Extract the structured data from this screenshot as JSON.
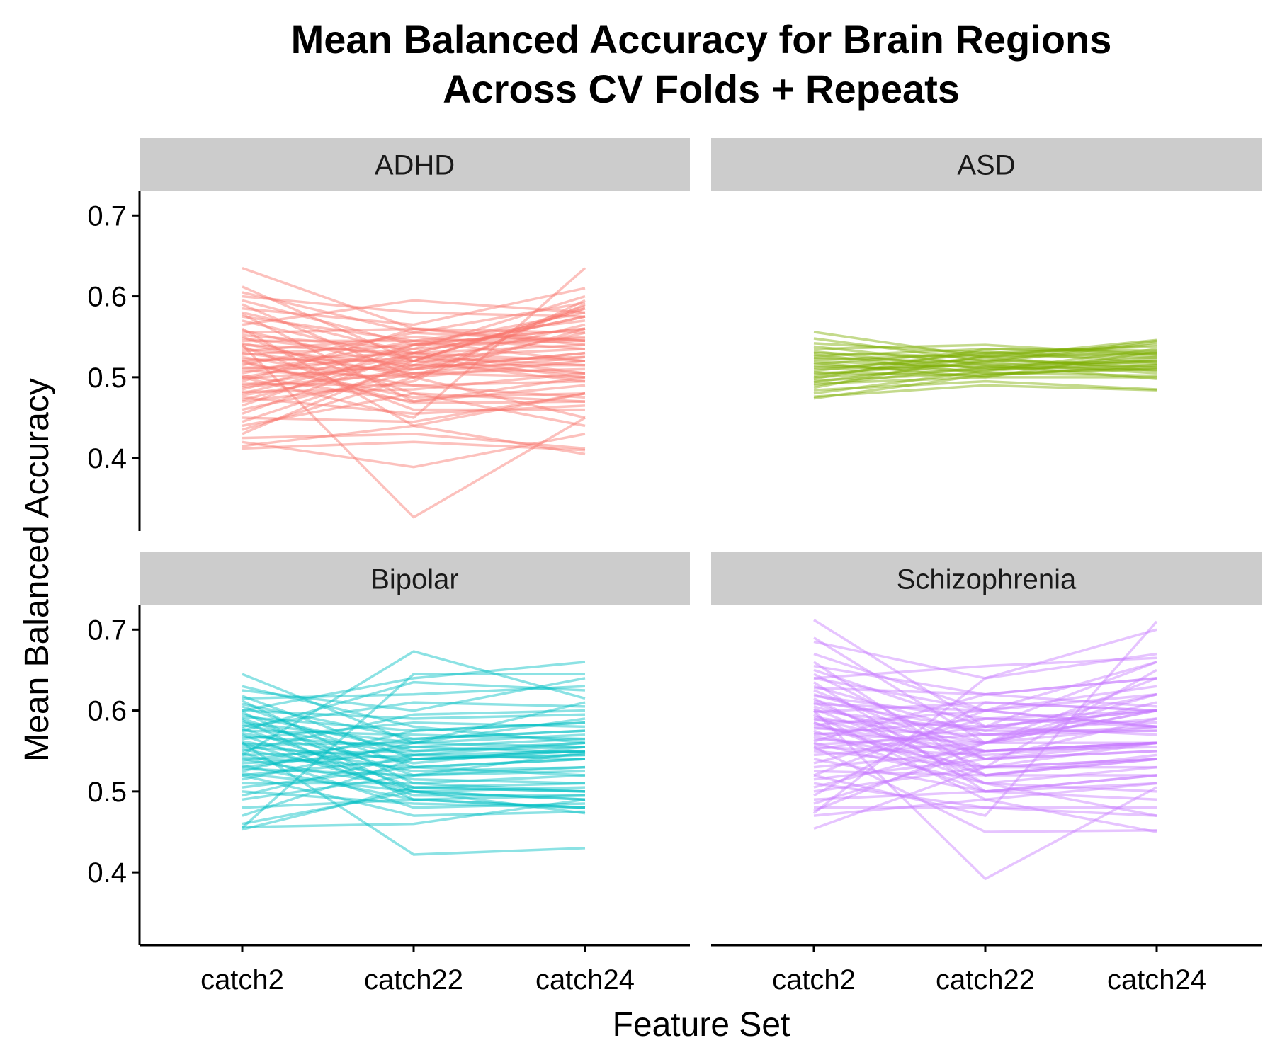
{
  "chart_data": {
    "type": "line",
    "title_lines": [
      "Mean Balanced Accuracy for Brain Regions",
      "Across CV Folds + Repeats"
    ],
    "xlabel": "Feature Set",
    "ylabel": "Mean Balanced Accuracy",
    "categories": [
      "catch2",
      "catch22",
      "catch24"
    ],
    "ylim": [
      0.31,
      0.73
    ],
    "yticks": [
      0.4,
      0.5,
      0.6,
      0.7
    ],
    "ytick_labels": [
      "0.4",
      "0.5",
      "0.6",
      "0.7"
    ],
    "grid": false,
    "legend": "none",
    "facets": [
      {
        "label": "ADHD",
        "color": "#F8766D",
        "lines": [
          [
            0.635,
            0.56,
            0.545
          ],
          [
            0.612,
            0.52,
            0.588
          ],
          [
            0.605,
            0.555,
            0.592
          ],
          [
            0.6,
            0.58,
            0.575
          ],
          [
            0.595,
            0.54,
            0.56
          ],
          [
            0.59,
            0.5,
            0.52
          ],
          [
            0.585,
            0.565,
            0.61
          ],
          [
            0.58,
            0.53,
            0.54
          ],
          [
            0.578,
            0.47,
            0.5
          ],
          [
            0.575,
            0.545,
            0.57
          ],
          [
            0.57,
            0.52,
            0.585
          ],
          [
            0.565,
            0.595,
            0.58
          ],
          [
            0.56,
            0.44,
            0.48
          ],
          [
            0.558,
            0.51,
            0.53
          ],
          [
            0.555,
            0.56,
            0.555
          ],
          [
            0.552,
            0.535,
            0.6
          ],
          [
            0.55,
            0.48,
            0.47
          ],
          [
            0.548,
            0.525,
            0.515
          ],
          [
            0.545,
            0.545,
            0.548
          ],
          [
            0.542,
            0.5,
            0.59
          ],
          [
            0.54,
            0.53,
            0.505
          ],
          [
            0.538,
            0.46,
            0.46
          ],
          [
            0.535,
            0.515,
            0.565
          ],
          [
            0.532,
            0.55,
            0.535
          ],
          [
            0.53,
            0.505,
            0.51
          ],
          [
            0.528,
            0.54,
            0.58
          ],
          [
            0.525,
            0.49,
            0.495
          ],
          [
            0.522,
            0.52,
            0.525
          ],
          [
            0.52,
            0.53,
            0.575
          ],
          [
            0.518,
            0.475,
            0.48
          ],
          [
            0.515,
            0.555,
            0.545
          ],
          [
            0.512,
            0.51,
            0.53
          ],
          [
            0.51,
            0.525,
            0.5
          ],
          [
            0.508,
            0.5,
            0.56
          ],
          [
            0.505,
            0.545,
            0.52
          ],
          [
            0.502,
            0.47,
            0.49
          ],
          [
            0.5,
            0.535,
            0.55
          ],
          [
            0.498,
            0.515,
            0.515
          ],
          [
            0.495,
            0.56,
            0.54
          ],
          [
            0.492,
            0.49,
            0.475
          ],
          [
            0.49,
            0.52,
            0.585
          ],
          [
            0.488,
            0.505,
            0.5
          ],
          [
            0.485,
            0.54,
            0.56
          ],
          [
            0.482,
            0.485,
            0.505
          ],
          [
            0.48,
            0.53,
            0.52
          ],
          [
            0.478,
            0.51,
            0.555
          ],
          [
            0.475,
            0.455,
            0.465
          ],
          [
            0.472,
            0.525,
            0.535
          ],
          [
            0.47,
            0.495,
            0.595
          ],
          [
            0.465,
            0.54,
            0.545
          ],
          [
            0.46,
            0.505,
            0.525
          ],
          [
            0.455,
            0.53,
            0.575
          ],
          [
            0.45,
            0.445,
            0.48
          ],
          [
            0.445,
            0.515,
            0.505
          ],
          [
            0.44,
            0.48,
            0.44
          ],
          [
            0.435,
            0.5,
            0.45
          ],
          [
            0.43,
            0.52,
            0.495
          ],
          [
            0.425,
            0.43,
            0.412
          ],
          [
            0.42,
            0.389,
            0.43
          ],
          [
            0.415,
            0.44,
            0.405
          ],
          [
            0.412,
            0.42,
            0.41
          ],
          [
            0.54,
            0.327,
            0.45
          ],
          [
            0.5,
            0.45,
            0.635
          ],
          [
            0.52,
            0.468,
            0.47
          ]
        ]
      },
      {
        "label": "ASD",
        "color": "#7CAE00",
        "lines": [
          [
            0.556,
            0.525,
            0.53
          ],
          [
            0.548,
            0.52,
            0.545
          ],
          [
            0.542,
            0.53,
            0.538
          ],
          [
            0.538,
            0.515,
            0.52
          ],
          [
            0.535,
            0.54,
            0.528
          ],
          [
            0.532,
            0.51,
            0.515
          ],
          [
            0.53,
            0.525,
            0.546
          ],
          [
            0.528,
            0.505,
            0.51
          ],
          [
            0.526,
            0.535,
            0.533
          ],
          [
            0.524,
            0.518,
            0.505
          ],
          [
            0.522,
            0.528,
            0.54
          ],
          [
            0.52,
            0.512,
            0.525
          ],
          [
            0.518,
            0.5,
            0.5
          ],
          [
            0.516,
            0.532,
            0.518
          ],
          [
            0.514,
            0.508,
            0.535
          ],
          [
            0.512,
            0.522,
            0.512
          ],
          [
            0.51,
            0.515,
            0.498
          ],
          [
            0.508,
            0.53,
            0.527
          ],
          [
            0.506,
            0.502,
            0.515
          ],
          [
            0.504,
            0.518,
            0.543
          ],
          [
            0.502,
            0.525,
            0.508
          ],
          [
            0.5,
            0.51,
            0.522
          ],
          [
            0.498,
            0.535,
            0.53
          ],
          [
            0.496,
            0.505,
            0.502
          ],
          [
            0.494,
            0.52,
            0.517
          ],
          [
            0.492,
            0.5,
            0.532
          ],
          [
            0.49,
            0.513,
            0.509
          ],
          [
            0.487,
            0.527,
            0.524
          ],
          [
            0.484,
            0.495,
            0.485
          ],
          [
            0.48,
            0.508,
            0.52
          ],
          [
            0.476,
            0.49,
            0.484
          ],
          [
            0.474,
            0.503,
            0.512
          ]
        ]
      },
      {
        "label": "Bipolar",
        "color": "#00BFC4",
        "lines": [
          [
            0.645,
            0.56,
            0.61
          ],
          [
            0.63,
            0.58,
            0.56
          ],
          [
            0.625,
            0.6,
            0.64
          ],
          [
            0.618,
            0.54,
            0.55
          ],
          [
            0.615,
            0.62,
            0.63
          ],
          [
            0.612,
            0.51,
            0.5
          ],
          [
            0.608,
            0.565,
            0.575
          ],
          [
            0.605,
            0.53,
            0.52
          ],
          [
            0.6,
            0.59,
            0.595
          ],
          [
            0.598,
            0.5,
            0.49
          ],
          [
            0.595,
            0.55,
            0.56
          ],
          [
            0.592,
            0.575,
            0.585
          ],
          [
            0.59,
            0.52,
            0.548
          ],
          [
            0.588,
            0.49,
            0.48
          ],
          [
            0.585,
            0.56,
            0.59
          ],
          [
            0.582,
            0.545,
            0.54
          ],
          [
            0.58,
            0.61,
            0.605
          ],
          [
            0.578,
            0.505,
            0.5
          ],
          [
            0.575,
            0.57,
            0.565
          ],
          [
            0.572,
            0.535,
            0.555
          ],
          [
            0.57,
            0.495,
            0.495
          ],
          [
            0.568,
            0.555,
            0.548
          ],
          [
            0.565,
            0.585,
            0.58
          ],
          [
            0.562,
            0.525,
            0.53
          ],
          [
            0.56,
            0.5,
            0.49
          ],
          [
            0.558,
            0.56,
            0.57
          ],
          [
            0.555,
            0.54,
            0.545
          ],
          [
            0.552,
            0.515,
            0.51
          ],
          [
            0.55,
            0.595,
            0.6
          ],
          [
            0.548,
            0.48,
            0.485
          ],
          [
            0.545,
            0.55,
            0.555
          ],
          [
            0.542,
            0.53,
            0.54
          ],
          [
            0.54,
            0.505,
            0.5
          ],
          [
            0.538,
            0.565,
            0.575
          ],
          [
            0.535,
            0.545,
            0.55
          ],
          [
            0.532,
            0.49,
            0.495
          ],
          [
            0.53,
            0.555,
            0.565
          ],
          [
            0.528,
            0.52,
            0.525
          ],
          [
            0.525,
            0.575,
            0.585
          ],
          [
            0.522,
            0.5,
            0.505
          ],
          [
            0.52,
            0.54,
            0.545
          ],
          [
            0.515,
            0.56,
            0.555
          ],
          [
            0.51,
            0.51,
            0.52
          ],
          [
            0.505,
            0.53,
            0.54
          ],
          [
            0.5,
            0.485,
            0.48
          ],
          [
            0.495,
            0.545,
            0.56
          ],
          [
            0.49,
            0.52,
            0.53
          ],
          [
            0.48,
            0.49,
            0.48
          ],
          [
            0.47,
            0.54,
            0.55
          ],
          [
            0.46,
            0.5,
            0.473
          ],
          [
            0.456,
            0.46,
            0.49
          ],
          [
            0.453,
            0.505,
            0.51
          ],
          [
            0.455,
            0.645,
            0.645
          ],
          [
            0.545,
            0.673,
            0.615
          ],
          [
            0.6,
            0.64,
            0.66
          ],
          [
            0.56,
            0.422,
            0.43
          ],
          [
            0.575,
            0.635,
            0.625
          ],
          [
            0.52,
            0.47,
            0.475
          ]
        ]
      },
      {
        "label": "Schizophrenia",
        "color": "#C77CFF",
        "lines": [
          [
            0.712,
            0.58,
            0.6
          ],
          [
            0.69,
            0.56,
            0.61
          ],
          [
            0.685,
            0.64,
            0.7
          ],
          [
            0.67,
            0.6,
            0.58
          ],
          [
            0.66,
            0.52,
            0.54
          ],
          [
            0.655,
            0.62,
            0.64
          ],
          [
            0.65,
            0.58,
            0.66
          ],
          [
            0.645,
            0.54,
            0.56
          ],
          [
            0.64,
            0.6,
            0.62
          ],
          [
            0.635,
            0.5,
            0.52
          ],
          [
            0.63,
            0.57,
            0.59
          ],
          [
            0.628,
            0.62,
            0.605
          ],
          [
            0.625,
            0.54,
            0.55
          ],
          [
            0.62,
            0.56,
            0.64
          ],
          [
            0.618,
            0.59,
            0.6
          ],
          [
            0.615,
            0.51,
            0.53
          ],
          [
            0.612,
            0.575,
            0.575
          ],
          [
            0.61,
            0.53,
            0.65
          ],
          [
            0.608,
            0.6,
            0.58
          ],
          [
            0.605,
            0.55,
            0.56
          ],
          [
            0.602,
            0.52,
            0.54
          ],
          [
            0.6,
            0.575,
            0.62
          ],
          [
            0.598,
            0.61,
            0.6
          ],
          [
            0.595,
            0.49,
            0.51
          ],
          [
            0.592,
            0.56,
            0.56
          ],
          [
            0.59,
            0.54,
            0.59
          ],
          [
            0.588,
            0.58,
            0.57
          ],
          [
            0.585,
            0.52,
            0.545
          ],
          [
            0.582,
            0.6,
            0.63
          ],
          [
            0.58,
            0.55,
            0.555
          ],
          [
            0.578,
            0.57,
            0.575
          ],
          [
            0.575,
            0.5,
            0.52
          ],
          [
            0.572,
            0.56,
            0.6
          ],
          [
            0.57,
            0.59,
            0.585
          ],
          [
            0.568,
            0.53,
            0.54
          ],
          [
            0.565,
            0.55,
            0.56
          ],
          [
            0.562,
            0.62,
            0.64
          ],
          [
            0.56,
            0.51,
            0.5
          ],
          [
            0.558,
            0.57,
            0.58
          ],
          [
            0.555,
            0.545,
            0.56
          ],
          [
            0.552,
            0.58,
            0.6
          ],
          [
            0.55,
            0.53,
            0.53
          ],
          [
            0.545,
            0.56,
            0.62
          ],
          [
            0.54,
            0.5,
            0.49
          ],
          [
            0.535,
            0.59,
            0.58
          ],
          [
            0.53,
            0.55,
            0.56
          ],
          [
            0.525,
            0.52,
            0.52
          ],
          [
            0.52,
            0.6,
            0.66
          ],
          [
            0.515,
            0.54,
            0.55
          ],
          [
            0.51,
            0.48,
            0.47
          ],
          [
            0.505,
            0.56,
            0.58
          ],
          [
            0.5,
            0.53,
            0.54
          ],
          [
            0.495,
            0.61,
            0.6
          ],
          [
            0.49,
            0.5,
            0.51
          ],
          [
            0.485,
            0.55,
            0.56
          ],
          [
            0.48,
            0.48,
            0.48
          ],
          [
            0.476,
            0.56,
            0.6
          ],
          [
            0.473,
            0.64,
            0.67
          ],
          [
            0.454,
            0.53,
            0.56
          ],
          [
            0.47,
            0.49,
            0.45
          ],
          [
            0.555,
            0.45,
            0.452
          ],
          [
            0.6,
            0.392,
            0.505
          ],
          [
            0.52,
            0.47,
            0.71
          ],
          [
            0.64,
            0.655,
            0.665
          ],
          [
            0.585,
            0.51,
            0.47
          ]
        ]
      }
    ]
  }
}
